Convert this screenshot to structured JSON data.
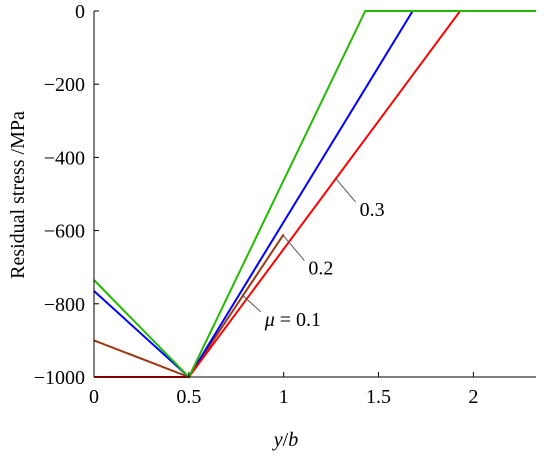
{
  "chart_data": {
    "type": "line",
    "title": "",
    "xlabel": "y/b",
    "ylabel": "Residual stress /MPa",
    "xlim": [
      0,
      2.33
    ],
    "ylim": [
      -1000,
      0
    ],
    "grid": false,
    "x_ticks": [
      0,
      0.5,
      1,
      1.5,
      2
    ],
    "x_tick_labels": [
      "0",
      "0.5",
      "1",
      "1.5",
      "2"
    ],
    "y_ticks": [
      0,
      -200,
      -400,
      -600,
      -800,
      -1000
    ],
    "y_tick_labels": [
      "0",
      "−200",
      "−400",
      "−600",
      "−800",
      "−1000"
    ],
    "series": [
      {
        "name": "0.1",
        "color": "#9b3a12",
        "x": [
          0,
          0.5,
          1.0
        ],
        "y": [
          -900,
          -1000,
          -610
        ]
      },
      {
        "name": "0.2",
        "color": "#0000ff",
        "x": [
          0,
          0.5,
          1.68,
          2.33
        ],
        "y": [
          -765,
          -1000,
          0,
          0
        ]
      },
      {
        "name": "0.3",
        "color": "#ff0000",
        "x": [
          0,
          0.5,
          1.93,
          2.33
        ],
        "y": [
          -1000,
          -1000,
          0,
          0
        ]
      },
      {
        "name": "",
        "color": "#22bb00",
        "x": [
          0,
          0.5,
          1.43,
          2.33
        ],
        "y": [
          -735,
          -1000,
          0,
          0
        ]
      }
    ],
    "annotations": [
      {
        "text": "0.3",
        "x": 1.27,
        "y": -455,
        "label_x": 1.4,
        "label_y": -560
      },
      {
        "text": "0.2",
        "x": 1.0,
        "y": -615,
        "label_x": 1.13,
        "label_y": -720
      },
      {
        "text_prefix": "μ",
        "text": " = 0.1",
        "x": 0.78,
        "y": -775,
        "label_x": 0.9,
        "label_y": -860
      }
    ]
  }
}
